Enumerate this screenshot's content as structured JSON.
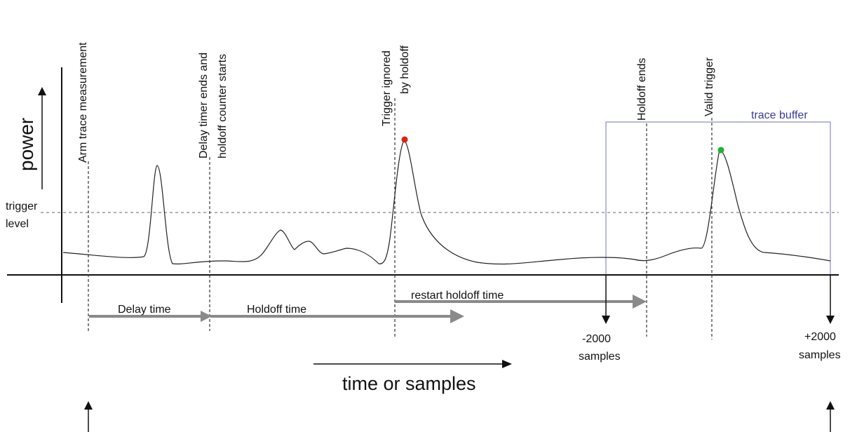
{
  "axes": {
    "y_label": "power",
    "x_label": "time or samples",
    "trigger_level_line1": "trigger",
    "trigger_level_line2": "level"
  },
  "events": {
    "arm": "Arm trace measurement",
    "delay_end_line1": "Delay timer ends and",
    "delay_end_line2": "holdoff counter starts",
    "ignored_line1": "Trigger ignored",
    "ignored_line2": "by holdoff",
    "holdoff_ends": "Holdoff ends",
    "valid": "Valid trigger"
  },
  "intervals": {
    "delay": "Delay time",
    "holdoff": "Holdoff time",
    "restart": "restart holdoff time"
  },
  "buffer": {
    "label": "trace buffer",
    "pre_value": "-2000",
    "pre_unit": "samples",
    "post_value": "+2000",
    "post_unit": "samples"
  },
  "colors": {
    "ignored_marker": "#e02010",
    "valid_marker": "#20b030",
    "buffer_box": "#8888cc",
    "buffer_label": "#3a3aa0",
    "arrow_fill": "#888888"
  }
}
